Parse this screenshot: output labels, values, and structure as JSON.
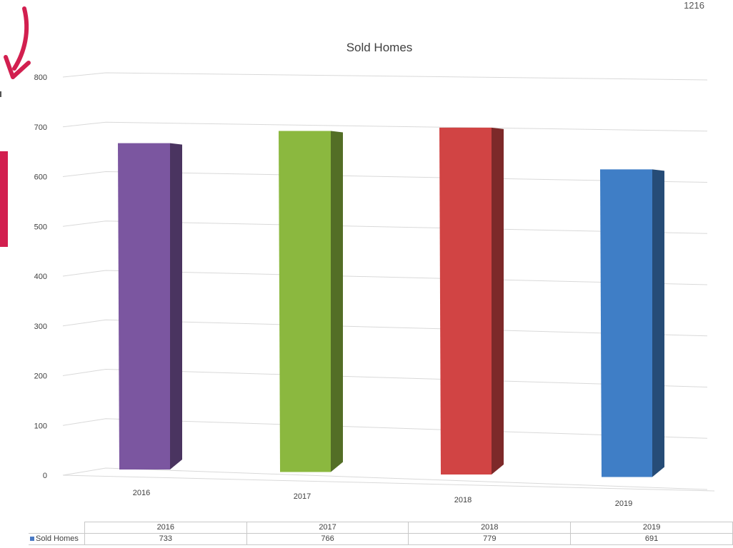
{
  "page_number": "1216",
  "chart_data": {
    "type": "bar",
    "title": "Sold Homes",
    "categories": [
      "2016",
      "2017",
      "2018",
      "2019"
    ],
    "series": [
      {
        "name": "Sold Homes",
        "values": [
          733,
          766,
          779,
          691
        ]
      }
    ],
    "bar_colors": [
      "#7b56a0",
      "#8bb83f",
      "#d14444",
      "#3f7ec6"
    ],
    "ylim": [
      0,
      800
    ],
    "yticks": [
      0,
      100,
      200,
      300,
      400,
      500,
      600,
      700,
      800
    ],
    "grid": true,
    "data_table": true
  }
}
